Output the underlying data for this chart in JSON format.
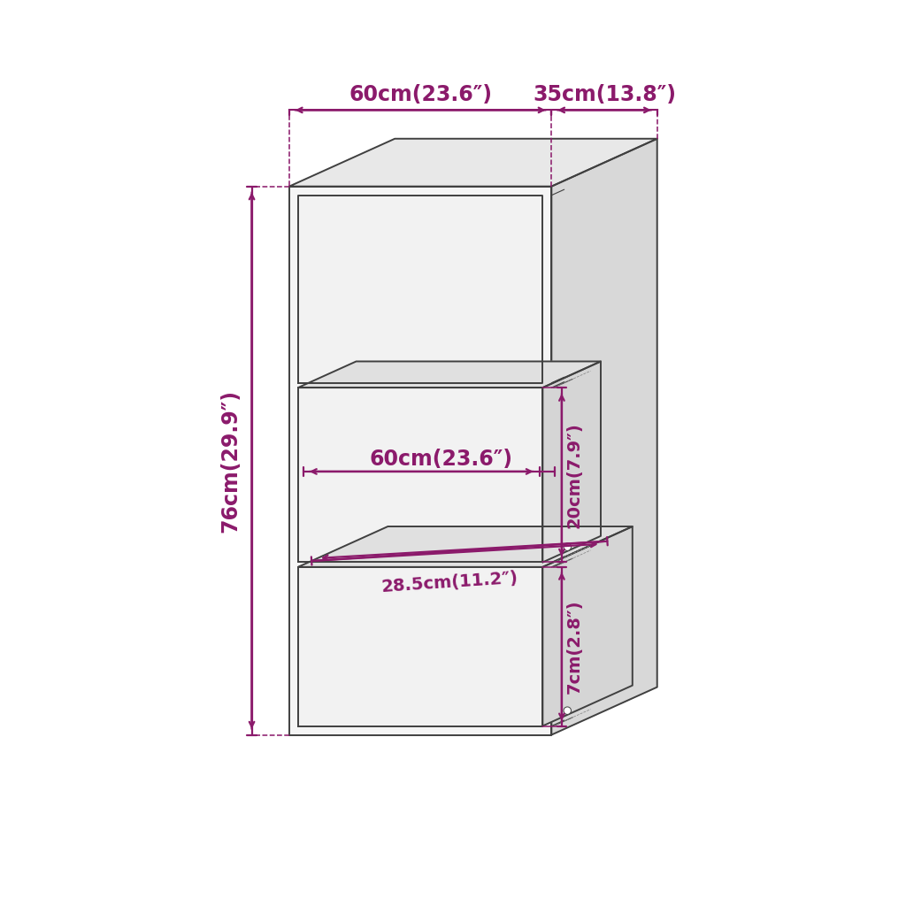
{
  "bg_color": "#ffffff",
  "line_color": "#404040",
  "dim_color": "#8b1a6b",
  "lw_main": 1.4,
  "lw_dim": 1.6,
  "lw_thin": 0.8,
  "labels": {
    "w60_top": "60cm(23.6″)",
    "d35_top": "35cm(13.8″)",
    "h76_left": "76cm(29.9″)",
    "w60_mid": "60cm(23.6″)",
    "dep285": "28.5cm(11.2″)",
    "h20_mid": "20cm(7.9″)",
    "h7_bot": "7cm(2.8″)"
  },
  "fs_large": 17,
  "fs_med": 14
}
